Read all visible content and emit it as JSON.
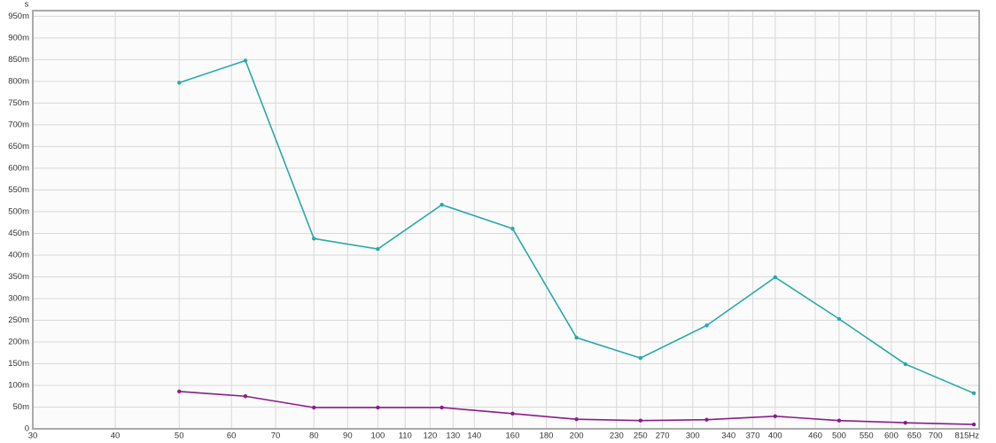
{
  "chart_data": {
    "type": "line",
    "y_label": "s",
    "x": [
      50,
      63,
      80,
      100,
      125,
      160,
      200,
      250,
      315,
      400,
      500,
      630,
      800
    ],
    "series": [
      {
        "color": "#27a9a9",
        "values": [
          0.797,
          0.848,
          0.438,
          0.414,
          0.516,
          0.461,
          0.21,
          0.163,
          0.238,
          0.349,
          0.253,
          0.149,
          0.082
        ]
      },
      {
        "color": "#8a1c8a",
        "values": [
          0.086,
          0.075,
          0.049,
          0.049,
          0.049,
          0.035,
          0.022,
          0.019,
          0.021,
          0.029,
          0.019,
          0.014,
          0.01
        ]
      }
    ],
    "xscale": "log",
    "xlim": [
      30,
      815
    ],
    "xticks": [
      30,
      40,
      50,
      60,
      70,
      80,
      90,
      100,
      110,
      120,
      130,
      140,
      160,
      180,
      200,
      230,
      250,
      270,
      300,
      340,
      370,
      400,
      460,
      500,
      550,
      600,
      650,
      700,
      {
        "value": 815,
        "label": "815Hz"
      }
    ],
    "ylim": [
      0,
      0.963
    ],
    "yticks": [
      0,
      {
        "value": 0.05,
        "label": "50m"
      },
      {
        "value": 0.1,
        "label": "100m"
      },
      {
        "value": 0.15,
        "label": "150m"
      },
      {
        "value": 0.2,
        "label": "200m"
      },
      {
        "value": 0.25,
        "label": "250m"
      },
      {
        "value": 0.3,
        "label": "300m"
      },
      {
        "value": 0.35,
        "label": "350m"
      },
      {
        "value": 0.4,
        "label": "400m"
      },
      {
        "value": 0.45,
        "label": "450m"
      },
      {
        "value": 0.5,
        "label": "500m"
      },
      {
        "value": 0.55,
        "label": "550m"
      },
      {
        "value": 0.6,
        "label": "600m"
      },
      {
        "value": 0.65,
        "label": "650m"
      },
      {
        "value": 0.7,
        "label": "700m"
      },
      {
        "value": 0.75,
        "label": "750m"
      },
      {
        "value": 0.8,
        "label": "800m"
      },
      {
        "value": 0.85,
        "label": "850m"
      },
      {
        "value": 0.9,
        "label": "900m"
      },
      {
        "value": 0.95,
        "label": "950m"
      }
    ],
    "grid": true
  }
}
